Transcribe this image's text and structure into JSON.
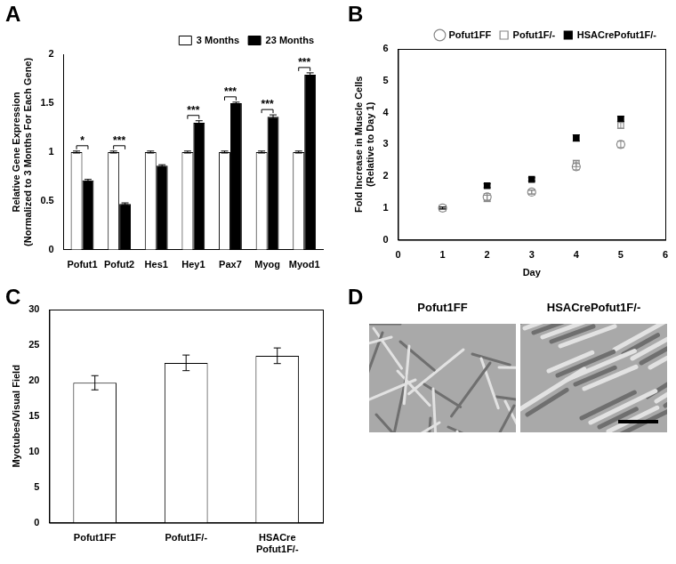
{
  "chart_data": [
    {
      "panel": "A",
      "type": "bar",
      "y_label": [
        "Relative Gene Expression",
        "(Normalized to 3 Months For Each Gene)"
      ],
      "categories": [
        "Pofut1",
        "Pofut2",
        "Hes1",
        "Hey1",
        "Pax7",
        "Myog",
        "Myod1"
      ],
      "series": [
        {
          "name": "3 Months",
          "color": "#ffffff",
          "values": [
            1,
            1,
            1,
            1,
            1,
            1,
            1
          ],
          "errors": [
            0.01,
            0.01,
            0.01,
            0.01,
            0.01,
            0.01,
            0.01
          ]
        },
        {
          "name": "23 Months",
          "color": "#000000",
          "values": [
            0.71,
            0.47,
            0.86,
            1.3,
            1.5,
            1.36,
            1.79
          ],
          "errors": [
            0.01,
            0.01,
            0.01,
            0.02,
            0.01,
            0.02,
            0.02
          ]
        }
      ],
      "annotations": [
        {
          "category": "Pofut1",
          "text": "*"
        },
        {
          "category": "Pofut2",
          "text": "***"
        },
        {
          "category": "Hey1",
          "text": "***"
        },
        {
          "category": "Pax7",
          "text": "***"
        },
        {
          "category": "Myog",
          "text": "***"
        },
        {
          "category": "Myod1",
          "text": "***"
        }
      ],
      "ylim": [
        0,
        2
      ],
      "yticks": [
        0,
        0.5,
        1,
        1.5,
        2
      ],
      "grid": false,
      "legend": "upper right"
    },
    {
      "panel": "B",
      "type": "scatter",
      "x_label": "Day",
      "y_label": [
        "Fold Increase in Muscle Cells",
        "(Relative to Day 1)"
      ],
      "series": [
        {
          "name": "Pofut1FF",
          "color": "#888888",
          "marker": "open circle",
          "x": [
            1,
            2,
            3,
            4,
            5
          ],
          "values": [
            1,
            1.35,
            1.5,
            2.3,
            3.0
          ],
          "errors": [
            0.03,
            0.1,
            0.06,
            0.1,
            0.1
          ]
        },
        {
          "name": "Pofut1F/-",
          "color": "#888888",
          "marker": "open square",
          "x": [
            1,
            2,
            3,
            4,
            5
          ],
          "values": [
            1,
            1.3,
            1.5,
            2.4,
            3.6
          ],
          "errors": [
            0.03,
            0.1,
            0.06,
            0.1,
            0.1
          ]
        },
        {
          "name": "HSACrePofut1F/-",
          "color": "#000000",
          "marker": "filled square",
          "x": [
            1,
            2,
            3,
            4,
            5
          ],
          "values": [
            1,
            1.7,
            1.9,
            3.2,
            3.8
          ],
          "errors": [
            0.03,
            0.06,
            0.05,
            0.1,
            0.08
          ]
        }
      ],
      "xlim": [
        0,
        6
      ],
      "xticks": [
        0,
        1,
        2,
        3,
        4,
        5,
        6
      ],
      "ylim": [
        0,
        6
      ],
      "yticks": [
        0,
        1,
        2,
        3,
        4,
        5,
        6
      ],
      "grid": false,
      "legend": "upper right"
    },
    {
      "panel": "C",
      "type": "bar",
      "y_label": "Myotubes/Visual Field",
      "categories": [
        "Pofut1FF",
        "Pofut1F/-",
        "HSACre Pofut1F/-"
      ],
      "values": [
        19.7,
        22.5,
        23.5
      ],
      "errors": [
        1.0,
        1.1,
        1.1
      ],
      "color": "#ffffff",
      "ylim": [
        0,
        30
      ],
      "yticks": [
        0,
        5,
        10,
        15,
        20,
        25,
        30
      ],
      "grid": false
    }
  ],
  "image_panel": {
    "panel": "D",
    "images": [
      "Pofut1FF",
      "HSACrePofut1F/-"
    ]
  }
}
